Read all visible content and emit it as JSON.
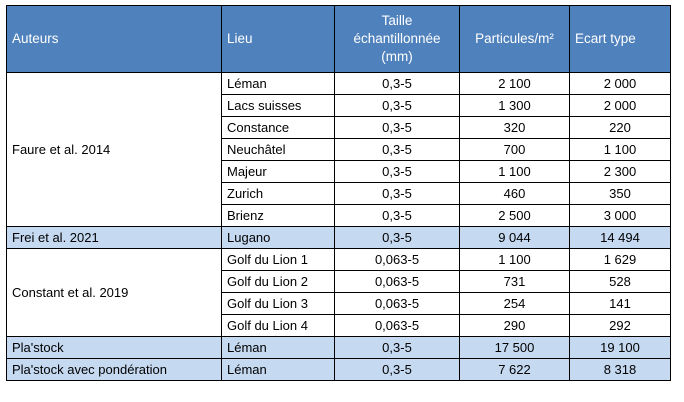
{
  "headers": {
    "auteurs": "Auteurs",
    "lieu": "Lieu",
    "taille_l1": "Taille",
    "taille_l2": "échantillonnée",
    "taille_l3": "(mm)",
    "particules": "Particules/m²",
    "ecart": "Ecart type"
  },
  "faure": {
    "author": "Faure et al. 2014",
    "rows": [
      {
        "lieu": "Léman",
        "taille": "0,3-5",
        "particules": "2 100",
        "ecart": "2 000"
      },
      {
        "lieu": "Lacs suisses",
        "taille": "0,3-5",
        "particules": "1 300",
        "ecart": "2 000"
      },
      {
        "lieu": "Constance",
        "taille": "0,3-5",
        "particules": "320",
        "ecart": "220"
      },
      {
        "lieu": "Neuchâtel",
        "taille": "0,3-5",
        "particules": "700",
        "ecart": "1 100"
      },
      {
        "lieu": "Majeur",
        "taille": "0,3-5",
        "particules": "1 100",
        "ecart": "2 300"
      },
      {
        "lieu": "Zurich",
        "taille": "0,3-5",
        "particules": "460",
        "ecart": "350"
      },
      {
        "lieu": "Brienz",
        "taille": "0,3-5",
        "particules": "2 500",
        "ecart": "3 000"
      }
    ]
  },
  "frei": {
    "author": "Frei et al. 2021",
    "row": {
      "lieu": "Lugano",
      "taille": "0,3-5",
      "particules": "9 044",
      "ecart": "14 494"
    }
  },
  "constant": {
    "author": "Constant et al. 2019",
    "rows": [
      {
        "lieu": "Golf du Lion 1",
        "taille": "0,063-5",
        "particules": "1 100",
        "ecart": "1 629"
      },
      {
        "lieu": "Golf du Lion 2",
        "taille": "0,063-5",
        "particules": "731",
        "ecart": "528"
      },
      {
        "lieu": "Golf du Lion 3",
        "taille": "0,063-5",
        "particules": "254",
        "ecart": "141"
      },
      {
        "lieu": "Golf du Lion 4",
        "taille": "0,063-5",
        "particules": "290",
        "ecart": "292"
      }
    ]
  },
  "plastock": {
    "author": "Pla'stock",
    "row": {
      "lieu": "Léman",
      "taille": "0,3-5",
      "particules": "17 500",
      "ecart": "19 100"
    }
  },
  "plastock_pond": {
    "author": "Pla'stock avec pondération",
    "row": {
      "lieu": "Léman",
      "taille": "0,3-5",
      "particules": "7 622",
      "ecart": "8 318"
    }
  }
}
